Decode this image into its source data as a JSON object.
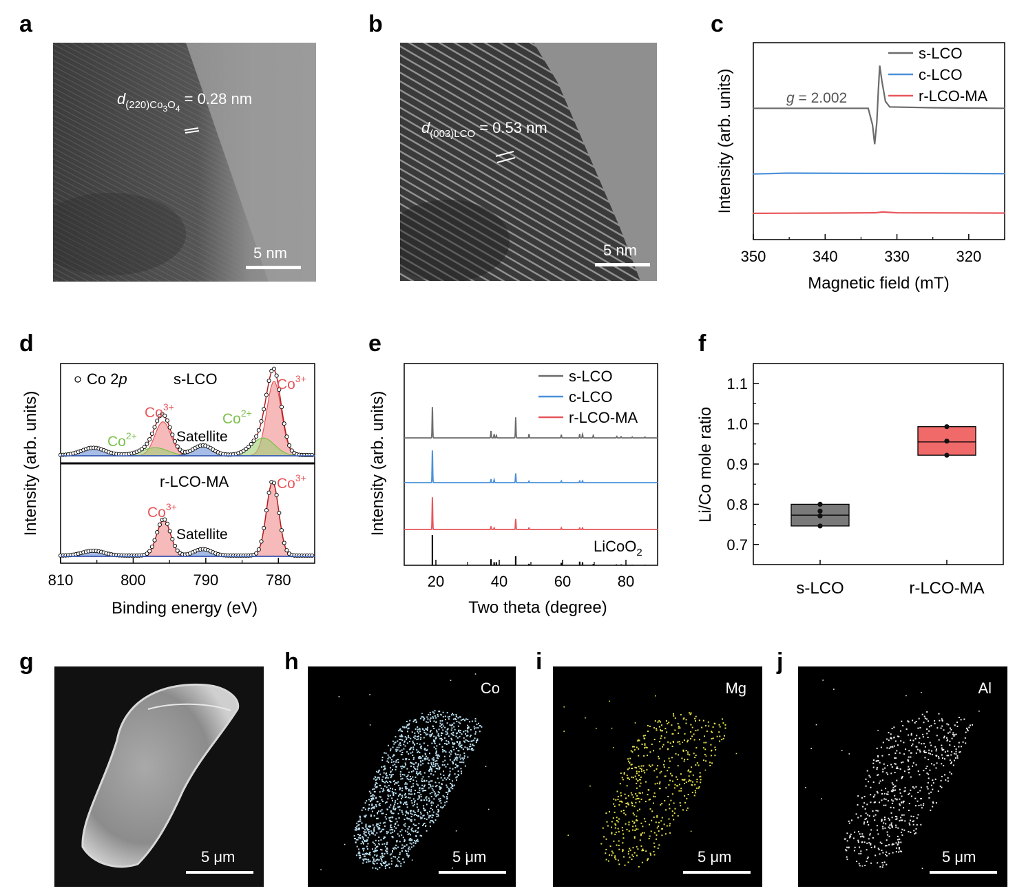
{
  "panels": {
    "a": {
      "label": "a",
      "annotation_pre": "d",
      "annotation_sub": "(220)Co",
      "annotation_sub2": "3",
      "annotation_sub3": "O",
      "annotation_sub4": "4",
      "annotation_post": " = 0.28 nm",
      "scalebar": "5 nm"
    },
    "b": {
      "label": "b",
      "annotation_pre": "d",
      "annotation_sub": "(003)LCO",
      "annotation_post": " = 0.53 nm",
      "scalebar": "5 nm"
    },
    "c": {
      "label": "c"
    },
    "d": {
      "label": "d"
    },
    "e": {
      "label": "e"
    },
    "f": {
      "label": "f"
    },
    "g": {
      "label": "g",
      "scalebar": "5 μm"
    },
    "h": {
      "label": "h",
      "element": "Co",
      "scalebar": "5 μm"
    },
    "i": {
      "label": "i",
      "element": "Mg",
      "scalebar": "5 μm"
    },
    "j": {
      "label": "j",
      "element": "Al",
      "scalebar": "5 μm"
    }
  },
  "colors": {
    "gray": "#6b6b6b",
    "blue": "#4a90d9",
    "red": "#e8555a",
    "fill_red": "#f4a3a3",
    "green": "#7cc04a",
    "navy": "#1f3a8a",
    "mg_yellow": "#e6e34a",
    "co_blue": "#bfe3f5",
    "al_white": "#f0f0f0"
  },
  "chart_data": [
    {
      "panel": "c",
      "type": "line",
      "xlabel": "Magnetic field (mT)",
      "ylabel": "Intensity (arb. units)",
      "xlim": [
        350,
        315
      ],
      "xticks": [
        350,
        340,
        330,
        320
      ],
      "annotation": {
        "text_pre": "g",
        "text_post": " = 2.002"
      },
      "series": [
        {
          "name": "s-LCO",
          "color": "#6b6b6b",
          "offset": 2.0,
          "points": [
            [
              350,
              0
            ],
            [
              340,
              0
            ],
            [
              334,
              0
            ],
            [
              333.4,
              -0.6
            ],
            [
              333.1,
              -1.3
            ],
            [
              332.8,
              -0.5
            ],
            [
              332.6,
              0.6
            ],
            [
              332.4,
              1.55
            ],
            [
              332.1,
              1.0
            ],
            [
              331.6,
              0.25
            ],
            [
              331,
              0.05
            ],
            [
              325,
              0.02
            ],
            [
              315,
              0
            ]
          ]
        },
        {
          "name": "c-LCO",
          "color": "#4a90d9",
          "offset": 1.0,
          "points": [
            [
              350,
              0
            ],
            [
              345,
              0.03
            ],
            [
              335,
              0.02
            ],
            [
              325,
              0.02
            ],
            [
              315,
              0.01
            ]
          ]
        },
        {
          "name": "r-LCO-MA",
          "color": "#e8555a",
          "offset": 0.4,
          "points": [
            [
              350,
              0
            ],
            [
              340,
              0.01
            ],
            [
              333,
              0.02
            ],
            [
              332,
              0.05
            ],
            [
              330,
              0.02
            ],
            [
              315,
              0.01
            ]
          ]
        }
      ]
    },
    {
      "panel": "d",
      "type": "line",
      "xlabel": "Binding energy (eV)",
      "ylabel": "Intensity (arb. units)",
      "xlim": [
        810,
        775
      ],
      "xticks": [
        810,
        800,
        790,
        780
      ],
      "legend": {
        "marker": "o",
        "text_pre": "Co 2",
        "text_italic": "p"
      },
      "subplots": [
        {
          "name": "s-LCO",
          "annotations": [
            "Co3+",
            "Co3+",
            "Co2+",
            "Co2+",
            "Satellite"
          ],
          "peaks": [
            {
              "label": "Co3+",
              "center": 795.9,
              "height": 0.42,
              "width": 1.1
            },
            {
              "label": "Co3+",
              "center": 780.6,
              "height": 0.92,
              "width": 1.0
            },
            {
              "label": "Co2+",
              "center": 797.0,
              "height": 0.1,
              "width": 1.8
            },
            {
              "label": "Co2+",
              "center": 782.1,
              "height": 0.22,
              "width": 1.6
            },
            {
              "label": "Satellite",
              "center": 805.5,
              "height": 0.09,
              "width": 1.6
            },
            {
              "label": "Satellite",
              "center": 790.4,
              "height": 0.12,
              "width": 1.3
            }
          ]
        },
        {
          "name": "r-LCO-MA",
          "annotations": [
            "Co3+",
            "Co3+",
            "Satellite"
          ],
          "peaks": [
            {
              "label": "Co3+",
              "center": 795.8,
              "height": 0.45,
              "width": 0.95
            },
            {
              "label": "Co3+",
              "center": 780.8,
              "height": 0.92,
              "width": 0.85
            },
            {
              "label": "Satellite",
              "center": 805.5,
              "height": 0.06,
              "width": 1.5
            },
            {
              "label": "Satellite",
              "center": 790.4,
              "height": 0.08,
              "width": 1.2
            }
          ]
        }
      ]
    },
    {
      "panel": "e",
      "type": "line",
      "xlabel": "Two theta (degree)",
      "ylabel": "Intensity (arb. units)",
      "xlim": [
        10,
        90
      ],
      "xticks": [
        20,
        40,
        60,
        80
      ],
      "series": [
        {
          "name": "s-LCO",
          "color": "#6b6b6b",
          "peaks": [
            [
              18.9,
              1.0
            ],
            [
              37.4,
              0.22
            ],
            [
              38.4,
              0.12
            ],
            [
              39.1,
              0.08
            ],
            [
              45.2,
              0.65
            ],
            [
              49.4,
              0.12
            ],
            [
              59.6,
              0.1
            ],
            [
              65.4,
              0.12
            ],
            [
              66.3,
              0.12
            ],
            [
              69.7,
              0.08
            ],
            [
              77.1,
              0.05
            ],
            [
              78.5,
              0.04
            ],
            [
              82,
              0.03
            ],
            [
              86,
              0.03
            ]
          ]
        },
        {
          "name": "c-LCO",
          "color": "#4a90d9",
          "peaks": [
            [
              18.9,
              1.0
            ],
            [
              37.4,
              0.1
            ],
            [
              38.4,
              0.09
            ],
            [
              45.2,
              0.28
            ],
            [
              49.4,
              0.05
            ],
            [
              59.6,
              0.05
            ],
            [
              65.4,
              0.06
            ],
            [
              66.3,
              0.06
            ]
          ]
        },
        {
          "name": "r-LCO-MA",
          "color": "#e8555a",
          "peaks": [
            [
              18.9,
              1.0
            ],
            [
              37.4,
              0.09
            ],
            [
              38.4,
              0.05
            ],
            [
              45.2,
              0.32
            ],
            [
              49.4,
              0.05
            ],
            [
              59.6,
              0.05
            ],
            [
              65.4,
              0.05
            ],
            [
              66.3,
              0.05
            ]
          ]
        },
        {
          "name": "LiCoO2",
          "color": "#000000",
          "reference": true,
          "peaks": [
            [
              18.9,
              1.0
            ],
            [
              37.4,
              0.2
            ],
            [
              38.4,
              0.1
            ],
            [
              39.1,
              0.1
            ],
            [
              45.2,
              0.3
            ],
            [
              49.4,
              0.05
            ],
            [
              59.6,
              0.08
            ],
            [
              65.4,
              0.12
            ],
            [
              66.3,
              0.1
            ],
            [
              69.7,
              0.04
            ],
            [
              77,
              0.03
            ],
            [
              78.5,
              0.03
            ],
            [
              82,
              0.02
            ],
            [
              86,
              0.02
            ]
          ]
        }
      ]
    },
    {
      "panel": "f",
      "type": "box",
      "ylabel": "Li/Co mole ratio",
      "ylim": [
        0.65,
        1.15
      ],
      "yticks": [
        "0.7",
        "0.8",
        "0.9",
        "1.0",
        "1.1"
      ],
      "categories": [
        "s-LCO",
        "r-LCO-MA"
      ],
      "boxes": [
        {
          "category": "s-LCO",
          "q1": 0.746,
          "median": 0.773,
          "q3": 0.8,
          "color": "#7a7a7a",
          "points": [
            0.746,
            0.771,
            0.783,
            0.8
          ]
        },
        {
          "category": "r-LCO-MA",
          "q1": 0.922,
          "median": 0.955,
          "q3": 0.993,
          "color": "#f06a6a",
          "points": [
            0.922,
            0.957,
            0.993
          ]
        }
      ]
    }
  ]
}
